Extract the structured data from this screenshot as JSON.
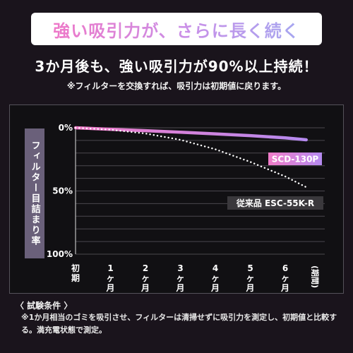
{
  "banner": {
    "text": "強い吸引力が、さらに長く続く"
  },
  "headline": "3か月後も、強い吸引力が90%以上持続！",
  "note": "※フィルターを交換すれば、吸引力は初期値に戻ります。",
  "conditions": {
    "title": "〈 試験条件 〉",
    "text": "※1か月相当のゴミを吸引させ、フィルターは清掃せずに吸引力を測定し、初期値と比較する。満充電状態で測定。"
  },
  "chart_data": {
    "type": "line",
    "ylabel": "フィルター目詰まり率",
    "xlabel": "(期間)",
    "x": [
      0,
      1,
      2,
      3,
      4,
      5,
      6,
      6.6
    ],
    "x_ticks": [
      "初期",
      "1ヶ月",
      "2ヶ月",
      "3ヶ月",
      "4ヶ月",
      "5ヶ月",
      "6ヶ月"
    ],
    "y_ticks": [
      "0%",
      "50%",
      "100%"
    ],
    "ylim": [
      0,
      100
    ],
    "y_inverted": true,
    "grid": true,
    "series": [
      {
        "name": "SCD-130P",
        "color": "#d98fe6",
        "style": "solid",
        "values": [
          0,
          1.2,
          2.3,
          3.5,
          4.8,
          6.2,
          8.0,
          9.5
        ]
      },
      {
        "name": "従来品 ESC-55K-R",
        "color": "#ffffff",
        "style": "dotted",
        "values": [
          0,
          1.5,
          4.5,
          9.5,
          17,
          27,
          38.5,
          47
        ]
      }
    ]
  }
}
